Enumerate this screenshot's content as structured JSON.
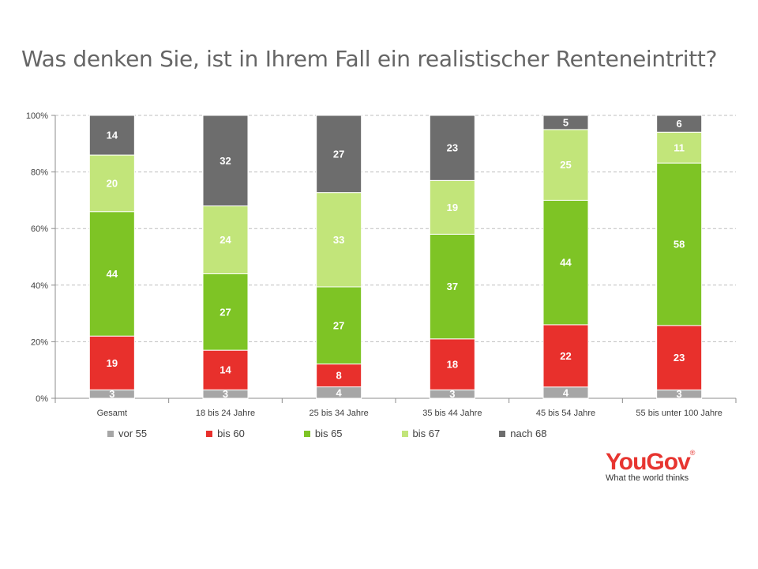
{
  "title": "Was denken Sie, ist in Ihrem Fall ein realistischer Renteneintritt?",
  "logo": {
    "brand": "YouGov",
    "registered": "®",
    "tagline": "What the world thinks"
  },
  "colors": {
    "vor 55": "#a6a6a6",
    "bis 60": "#e8302c",
    "bis 65": "#7ec425",
    "bis 67": "#c2e57a",
    "nach 68": "#6d6d6d"
  },
  "chart_data": {
    "type": "bar",
    "stacked": true,
    "percent_stacked": true,
    "title": "Was denken Sie, ist in Ihrem Fall ein realistischer Renteneintritt?",
    "categories": [
      "Gesamt",
      "18 bis 24 Jahre",
      "25 bis 34 Jahre",
      "35 bis 44 Jahre",
      "45 bis 54 Jahre",
      "55 bis unter 100 Jahre"
    ],
    "series": [
      {
        "name": "vor 55",
        "values": [
          3,
          3,
          4,
          3,
          4,
          3
        ]
      },
      {
        "name": "bis 60",
        "values": [
          19,
          14,
          8,
          18,
          22,
          23
        ]
      },
      {
        "name": "bis 65",
        "values": [
          44,
          27,
          27,
          37,
          44,
          58
        ]
      },
      {
        "name": "bis 67",
        "values": [
          20,
          24,
          33,
          19,
          25,
          11
        ]
      },
      {
        "name": "nach 68",
        "values": [
          14,
          32,
          27,
          23,
          5,
          6
        ]
      }
    ],
    "y_ticks": [
      "0%",
      "20%",
      "40%",
      "60%",
      "80%",
      "100%"
    ],
    "ylim": [
      0,
      100
    ],
    "grid": true,
    "legend_position": "bottom"
  }
}
